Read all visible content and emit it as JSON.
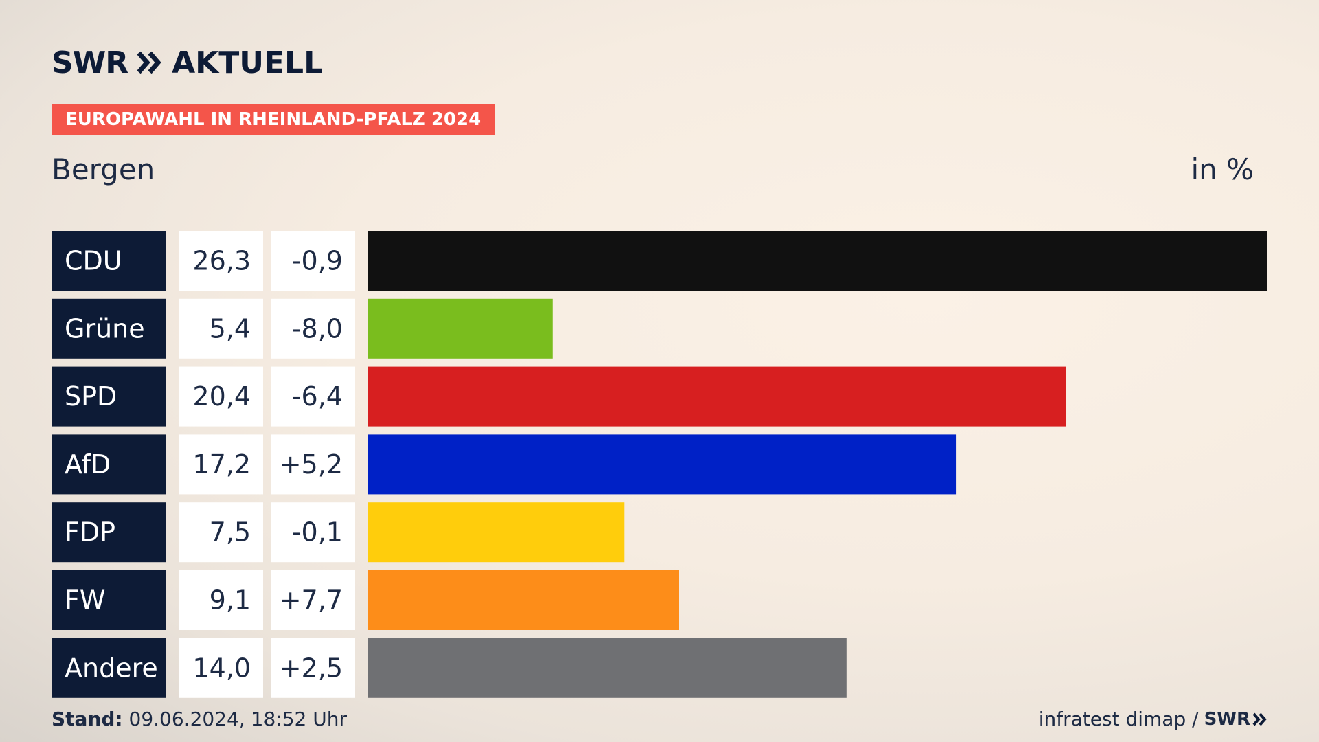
{
  "header": {
    "brand": "SWR",
    "brand_suffix": "AKTUELL",
    "tag": "EUROPAWAHL IN RHEINLAND-PFALZ 2024",
    "place": "Bergen",
    "unit": "in %"
  },
  "footer": {
    "stand_label": "Stand:",
    "stand_value": "09.06.2024, 18:52 Uhr",
    "source": "infratest dimap /",
    "source_brand": "SWR"
  },
  "colors": {
    "label_bg": "#0d1b36",
    "value_bg": "#ffffff",
    "tag_bg": "#f4554a"
  },
  "chart_data": {
    "type": "bar",
    "orientation": "horizontal",
    "title": "Bergen",
    "unit": "in %",
    "categories": [
      "CDU",
      "Grüne",
      "SPD",
      "AfD",
      "FDP",
      "FW",
      "Andere"
    ],
    "values": [
      26.3,
      5.4,
      20.4,
      17.2,
      7.5,
      9.1,
      14.0
    ],
    "values_text": [
      "26,3",
      "5,4",
      "20,4",
      "17,2",
      "7,5",
      "9,1",
      "14,0"
    ],
    "changes_text": [
      "-0,9",
      "-8,0",
      "-6,4",
      "+5,2",
      "-0,1",
      "+7,7",
      "+2,5"
    ],
    "bar_colors": [
      "#111111",
      "#7abd1e",
      "#d71f20",
      "#0021c6",
      "#ffcd0c",
      "#fd8d19",
      "#6f7073"
    ],
    "xlim": [
      0,
      26.3
    ]
  }
}
